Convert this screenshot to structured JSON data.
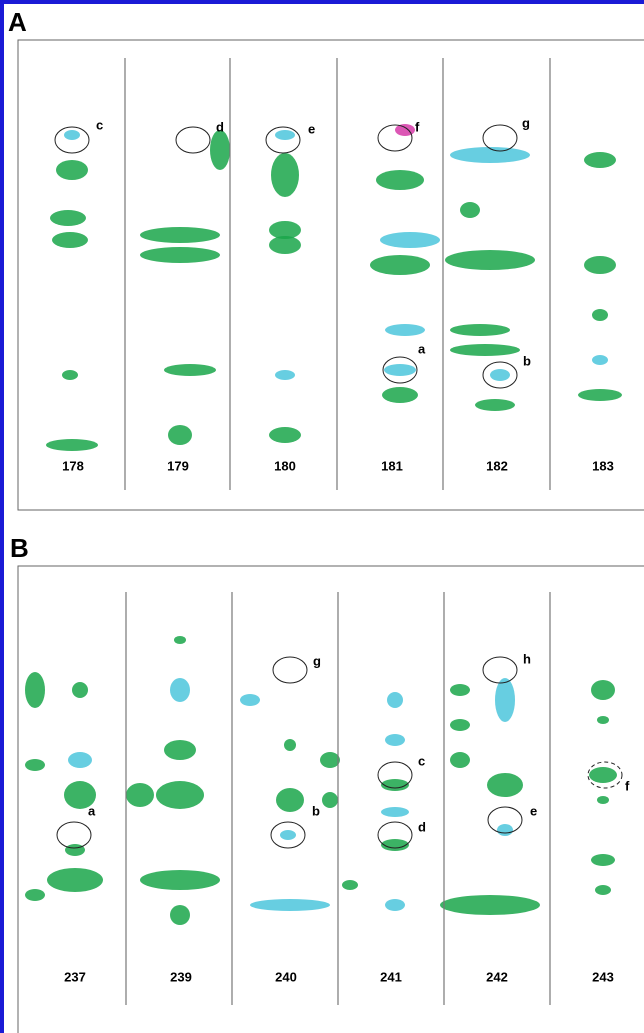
{
  "panels": [
    {
      "label": "A",
      "strips": [
        178,
        179,
        180,
        181,
        182,
        183
      ],
      "annotations": [
        "c",
        "d",
        "e",
        "f",
        "g",
        "a",
        "b"
      ]
    },
    {
      "label": "B",
      "strips": [
        237,
        239,
        240,
        241,
        242,
        243
      ],
      "annotations": [
        "g",
        "h",
        "a",
        "b",
        "c",
        "d",
        "e",
        "f"
      ]
    }
  ]
}
